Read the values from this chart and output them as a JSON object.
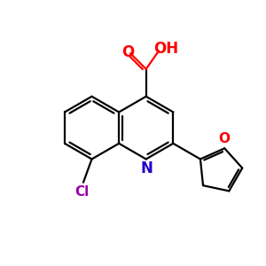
{
  "bg_color": "#ffffff",
  "bond_color": "#000000",
  "N_color": "#2200cc",
  "O_color": "#ff0000",
  "Cl_color": "#9900aa",
  "lw": 1.6,
  "figsize": [
    3.0,
    3.0
  ],
  "dpi": 100,
  "xlim": [
    0,
    10
  ],
  "ylim": [
    0,
    10
  ]
}
